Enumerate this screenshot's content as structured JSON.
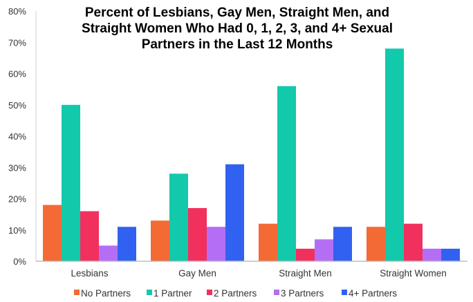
{
  "chart_data": {
    "type": "bar",
    "title": [
      "Percent of Lesbians, Gay Men, Straight Men, and",
      "Straight Women Who Had 0, 1, 2, 3, and 4+ Sexual",
      "Partners in the Last 12 Months"
    ],
    "xlabel": "",
    "ylabel": "",
    "ylim": [
      0,
      80
    ],
    "yticks": [
      "0%",
      "10%",
      "20%",
      "30%",
      "40%",
      "50%",
      "60%",
      "70%",
      "80%"
    ],
    "grid": false,
    "legend_position": "bottom",
    "categories": [
      "Lesbians",
      "Gay Men",
      "Straight Men",
      "Straight Women"
    ],
    "series": [
      {
        "name": "No Partners",
        "color": "#f36a35",
        "values": [
          18,
          13,
          12,
          11
        ]
      },
      {
        "name": "1 Partner",
        "color": "#12c9ab",
        "values": [
          50,
          28,
          56,
          68
        ]
      },
      {
        "name": "2 Partners",
        "color": "#f2305d",
        "values": [
          16,
          17,
          4,
          12
        ]
      },
      {
        "name": "3 Partners",
        "color": "#b46ef5",
        "values": [
          5,
          11,
          7,
          4
        ]
      },
      {
        "name": "4+ Partners",
        "color": "#3161f0",
        "values": [
          11,
          31,
          11,
          4
        ]
      }
    ]
  }
}
